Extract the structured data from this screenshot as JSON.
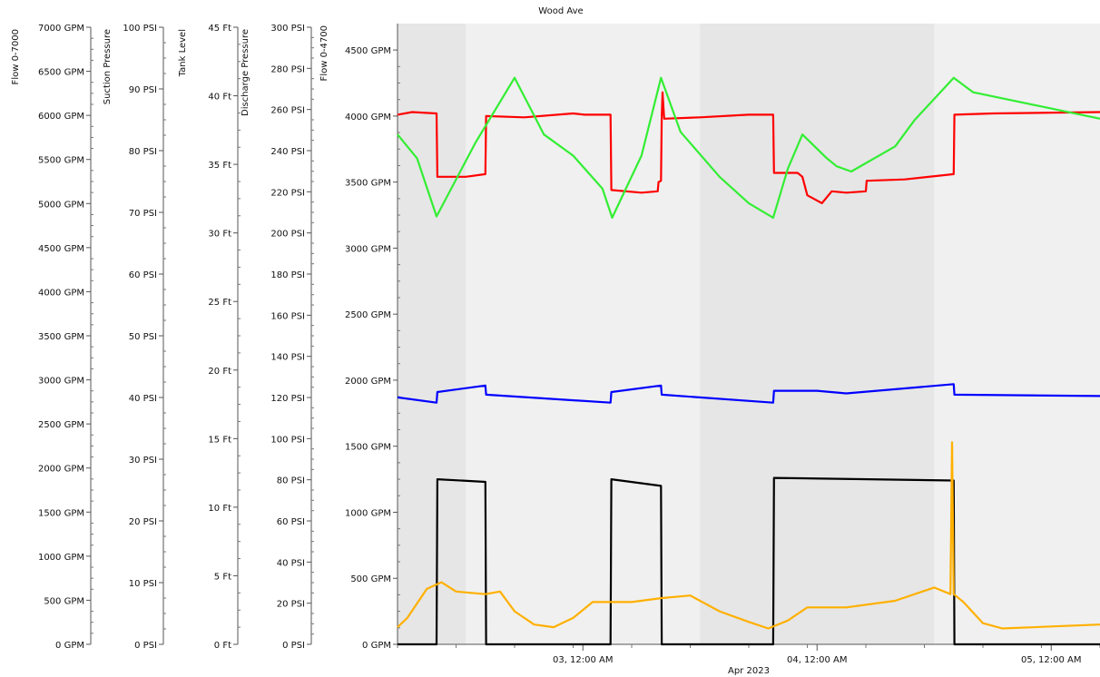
{
  "chart_data": {
    "type": "line",
    "title": "Wood Ave",
    "xlabel": "Apr 2023",
    "grid": false,
    "legend": "none",
    "background_bands": "alternating light gray day bands",
    "x_range": [
      "2023-04-02 05:00",
      "2023-04-05 05:00"
    ],
    "x_ticks": [
      {
        "t": "2023-04-03 00:00",
        "label": "03, 12:00 AM"
      },
      {
        "t": "2023-04-04 00:00",
        "label": "04, 12:00 AM"
      },
      {
        "t": "2023-04-05 00:00",
        "label": "05, 12:00 AM"
      }
    ],
    "axes": [
      {
        "id": "flow7000",
        "title": "Flow 0-7000",
        "unit": "GPM",
        "range": [
          0,
          7000
        ],
        "ticks": [
          0,
          500,
          1000,
          1500,
          2000,
          2500,
          3000,
          3500,
          4000,
          4500,
          5000,
          5500,
          6000,
          6500,
          7000
        ],
        "labels": [
          "0 GPM",
          "500 GPM",
          "1000 GPM",
          "1500 GPM",
          "2000 GPM",
          "2500 GPM",
          "3000 GPM",
          "3500 GPM",
          "4000 GPM",
          "4500 GPM",
          "5000 GPM",
          "5500 GPM",
          "6000 GPM",
          "6500 GPM",
          "7000 GPM"
        ]
      },
      {
        "id": "suction",
        "title": "Suction Pressure",
        "unit": "PSI",
        "range": [
          0,
          100
        ],
        "ticks": [
          0,
          10,
          20,
          30,
          40,
          50,
          60,
          70,
          80,
          90,
          100
        ],
        "labels": [
          "0 PSI",
          "10 PSI",
          "20 PSI",
          "30 PSI",
          "40 PSI",
          "50 PSI",
          "60 PSI",
          "70 PSI",
          "80 PSI",
          "90 PSI",
          "100 PSI"
        ]
      },
      {
        "id": "tank",
        "title": "Tank Level",
        "unit": "Ft",
        "range": [
          0,
          45
        ],
        "ticks": [
          0,
          5,
          10,
          15,
          20,
          25,
          30,
          35,
          40,
          45
        ],
        "labels": [
          "0 Ft",
          "5 Ft",
          "10 Ft",
          "15 Ft",
          "20 Ft",
          "25 Ft",
          "30 Ft",
          "35 Ft",
          "40 Ft",
          "45 Ft"
        ]
      },
      {
        "id": "discharge",
        "title": "Discharge Pressure",
        "unit": "PSI",
        "range": [
          0,
          300
        ],
        "ticks": [
          0,
          20,
          40,
          60,
          80,
          100,
          120,
          140,
          160,
          180,
          200,
          220,
          240,
          260,
          280,
          300
        ],
        "labels": [
          "0 PSI",
          "20 PSI",
          "40 PSI",
          "60 PSI",
          "80 PSI",
          "100 PSI",
          "120 PSI",
          "140 PSI",
          "160 PSI",
          "180 PSI",
          "200 PSI",
          "220 PSI",
          "240 PSI",
          "260 PSI",
          "280 PSI",
          "300 PSI"
        ]
      },
      {
        "id": "flow4700",
        "title": "Flow 0-4700",
        "unit": "GPM",
        "range": [
          0,
          4700
        ],
        "ticks": [
          0,
          500,
          1000,
          1500,
          2000,
          2500,
          3000,
          3500,
          4000,
          4500
        ],
        "labels": [
          "0 GPM",
          "500 GPM",
          "1000 GPM",
          "1500 GPM",
          "2000 GPM",
          "2500 GPM",
          "3000 GPM",
          "3500 GPM",
          "4000 GPM",
          "4500 GPM"
        ]
      }
    ],
    "series": [
      {
        "color": "#ff0000",
        "axis": "flow4700",
        "points": [
          [
            "2023-04-02 05:00",
            4010
          ],
          [
            "2023-04-02 06:30",
            4030
          ],
          [
            "2023-04-02 09:00",
            4020
          ],
          [
            "2023-04-02 09:05",
            3540
          ],
          [
            "2023-04-02 12:00",
            3540
          ],
          [
            "2023-04-02 14:00",
            3560
          ],
          [
            "2023-04-02 14:05",
            4000
          ],
          [
            "2023-04-02 18:00",
            3990
          ],
          [
            "2023-04-02 23:00",
            4020
          ],
          [
            "2023-04-03 00:10",
            4010
          ],
          [
            "2023-04-03 02:50",
            4010
          ],
          [
            "2023-04-03 02:55",
            3440
          ],
          [
            "2023-04-03 06:00",
            3420
          ],
          [
            "2023-04-03 07:40",
            3430
          ],
          [
            "2023-04-03 07:45",
            3500
          ],
          [
            "2023-04-03 08:00",
            3510
          ],
          [
            "2023-04-03 08:05",
            3990
          ],
          [
            "2023-04-03 08:10",
            4180
          ],
          [
            "2023-04-03 08:20",
            3980
          ],
          [
            "2023-04-03 12:00",
            3990
          ],
          [
            "2023-04-03 17:00",
            4010
          ],
          [
            "2023-04-03 19:30",
            4010
          ],
          [
            "2023-04-03 19:35",
            3570
          ],
          [
            "2023-04-03 22:00",
            3570
          ],
          [
            "2023-04-03 22:30",
            3540
          ],
          [
            "2023-04-03 23:00",
            3400
          ],
          [
            "2023-04-04 00:30",
            3340
          ],
          [
            "2023-04-04 01:30",
            3430
          ],
          [
            "2023-04-04 03:00",
            3420
          ],
          [
            "2023-04-04 05:00",
            3430
          ],
          [
            "2023-04-04 05:05",
            3510
          ],
          [
            "2023-04-04 09:00",
            3520
          ],
          [
            "2023-04-04 14:00",
            3560
          ],
          [
            "2023-04-04 14:05",
            4010
          ],
          [
            "2023-04-04 18:00",
            4020
          ],
          [
            "2023-04-05 05:00",
            4030
          ]
        ]
      },
      {
        "color": "#33ee33",
        "axis": "flow4700",
        "points": [
          [
            "2023-04-02 05:00",
            3860
          ],
          [
            "2023-04-02 07:00",
            3680
          ],
          [
            "2023-04-02 09:00",
            3240
          ],
          [
            "2023-04-02 13:00",
            3800
          ],
          [
            "2023-04-02 17:00",
            4290
          ],
          [
            "2023-04-02 20:00",
            3860
          ],
          [
            "2023-04-02 23:00",
            3700
          ],
          [
            "2023-04-03 02:00",
            3450
          ],
          [
            "2023-04-03 03:00",
            3230
          ],
          [
            "2023-04-03 06:00",
            3700
          ],
          [
            "2023-04-03 08:00",
            4290
          ],
          [
            "2023-04-03 10:00",
            3880
          ],
          [
            "2023-04-03 14:00",
            3540
          ],
          [
            "2023-04-03 17:00",
            3340
          ],
          [
            "2023-04-03 19:30",
            3230
          ],
          [
            "2023-04-03 21:00",
            3600
          ],
          [
            "2023-04-03 22:30",
            3860
          ],
          [
            "2023-04-04 01:00",
            3680
          ],
          [
            "2023-04-04 02:00",
            3620
          ],
          [
            "2023-04-04 03:30",
            3580
          ],
          [
            "2023-04-04 08:00",
            3770
          ],
          [
            "2023-04-04 10:00",
            3970
          ],
          [
            "2023-04-04 14:00",
            4290
          ],
          [
            "2023-04-04 16:00",
            4180
          ],
          [
            "2023-04-05 05:00",
            3980
          ]
        ]
      },
      {
        "color": "#0000ff",
        "axis": "flow4700",
        "points": [
          [
            "2023-04-02 05:00",
            1870
          ],
          [
            "2023-04-02 09:00",
            1830
          ],
          [
            "2023-04-02 09:05",
            1910
          ],
          [
            "2023-04-02 14:00",
            1960
          ],
          [
            "2023-04-02 14:05",
            1890
          ],
          [
            "2023-04-03 02:50",
            1830
          ],
          [
            "2023-04-03 02:55",
            1910
          ],
          [
            "2023-04-03 08:00",
            1960
          ],
          [
            "2023-04-03 08:05",
            1890
          ],
          [
            "2023-04-03 19:30",
            1830
          ],
          [
            "2023-04-03 19:35",
            1920
          ],
          [
            "2023-04-04 00:00",
            1920
          ],
          [
            "2023-04-04 03:00",
            1900
          ],
          [
            "2023-04-04 14:00",
            1970
          ],
          [
            "2023-04-04 14:05",
            1890
          ],
          [
            "2023-04-05 05:00",
            1880
          ]
        ]
      },
      {
        "color": "#000000",
        "axis": "flow4700",
        "points": [
          [
            "2023-04-02 05:00",
            0
          ],
          [
            "2023-04-02 09:00",
            0
          ],
          [
            "2023-04-02 09:05",
            1250
          ],
          [
            "2023-04-02 14:00",
            1230
          ],
          [
            "2023-04-02 14:05",
            0
          ],
          [
            "2023-04-03 02:50",
            0
          ],
          [
            "2023-04-03 02:55",
            1250
          ],
          [
            "2023-04-03 08:00",
            1200
          ],
          [
            "2023-04-03 08:05",
            0
          ],
          [
            "2023-04-03 19:30",
            0
          ],
          [
            "2023-04-03 19:35",
            1260
          ],
          [
            "2023-04-04 14:00",
            1240
          ],
          [
            "2023-04-04 14:05",
            0
          ],
          [
            "2023-04-05 05:00",
            0
          ]
        ]
      },
      {
        "color": "#ffb000",
        "axis": "flow4700",
        "points": [
          [
            "2023-04-02 05:00",
            130
          ],
          [
            "2023-04-02 06:00",
            200
          ],
          [
            "2023-04-02 08:00",
            420
          ],
          [
            "2023-04-02 09:30",
            470
          ],
          [
            "2023-04-02 11:00",
            400
          ],
          [
            "2023-04-02 14:00",
            380
          ],
          [
            "2023-04-02 15:30",
            400
          ],
          [
            "2023-04-02 17:00",
            250
          ],
          [
            "2023-04-02 19:00",
            150
          ],
          [
            "2023-04-02 21:00",
            130
          ],
          [
            "2023-04-02 23:00",
            200
          ],
          [
            "2023-04-03 01:00",
            320
          ],
          [
            "2023-04-03 05:00",
            320
          ],
          [
            "2023-04-03 08:00",
            350
          ],
          [
            "2023-04-03 11:00",
            370
          ],
          [
            "2023-04-03 14:00",
            250
          ],
          [
            "2023-04-03 17:00",
            170
          ],
          [
            "2023-04-03 19:00",
            120
          ],
          [
            "2023-04-03 21:00",
            180
          ],
          [
            "2023-04-03 23:00",
            280
          ],
          [
            "2023-04-04 03:00",
            280
          ],
          [
            "2023-04-04 08:00",
            330
          ],
          [
            "2023-04-04 12:00",
            430
          ],
          [
            "2023-04-04 13:40",
            380
          ],
          [
            "2023-04-04 13:50",
            1530
          ],
          [
            "2023-04-04 14:00",
            380
          ],
          [
            "2023-04-04 15:00",
            320
          ],
          [
            "2023-04-04 17:00",
            160
          ],
          [
            "2023-04-04 19:00",
            120
          ],
          [
            "2023-04-05 05:00",
            150
          ]
        ]
      }
    ]
  }
}
